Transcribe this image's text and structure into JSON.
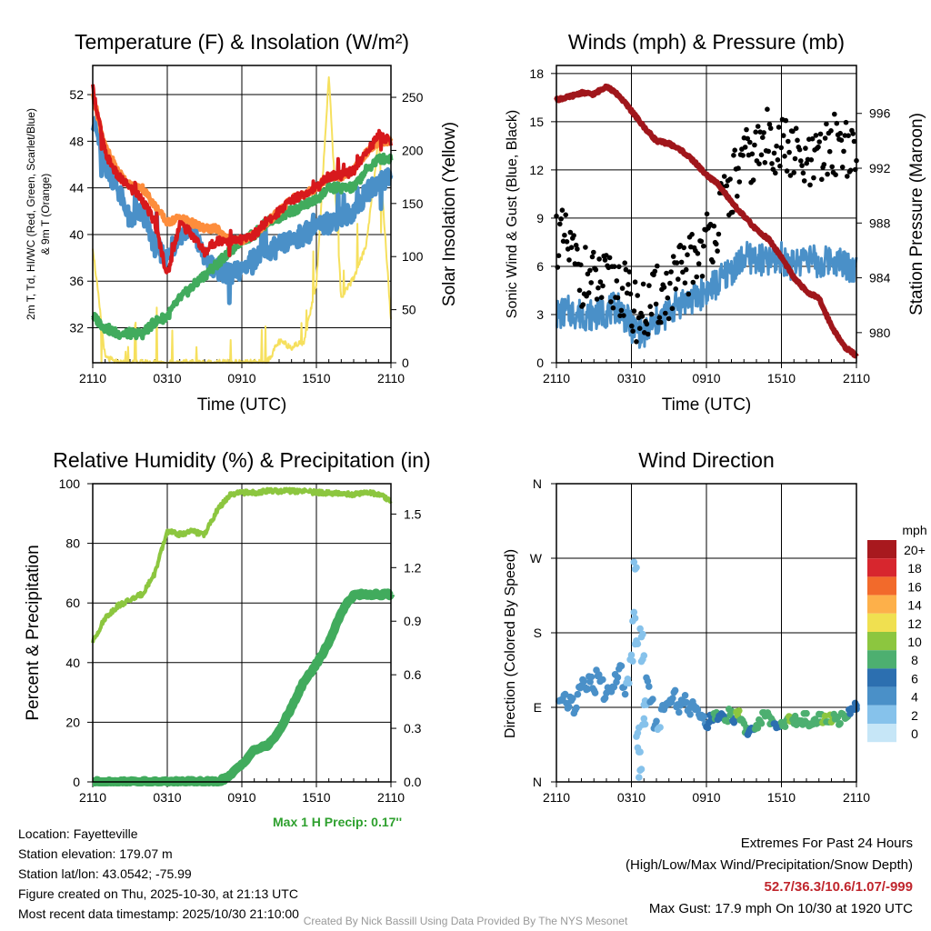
{
  "chart_data": [
    {
      "type": "line",
      "title": "Temperature (F) & Insolation (W/m²)",
      "xlabel": "Time (UTC)",
      "ylabel": "2m T, Td, HI/WC (Red, Green, Scarlet/Blue) & 9m T (Orange)",
      "y2label": "Solar Insolation (Yellow)",
      "x_ticks": [
        "2110",
        "0310",
        "0910",
        "1510",
        "2110"
      ],
      "y_ticks": [
        32,
        36,
        40,
        44,
        48,
        52
      ],
      "y2_ticks": [
        0,
        50,
        100,
        150,
        200,
        250
      ],
      "ylim": [
        29,
        54.5
      ],
      "y2lim": [
        0,
        280
      ],
      "hours": [
        0,
        1,
        2,
        3,
        4,
        5,
        6,
        7,
        8,
        9,
        10,
        11,
        12,
        13,
        14,
        15,
        16,
        17,
        18,
        19,
        20,
        21,
        22,
        23,
        24
      ],
      "series": [
        {
          "name": "2m T",
          "color": "#d7191c",
          "values": [
            52.5,
            47,
            45,
            44,
            43,
            41,
            36.5,
            41,
            40,
            38.5,
            39.5,
            39.5,
            39.5,
            40,
            41,
            42,
            43,
            43.5,
            44,
            45,
            45,
            45.5,
            47,
            48.5,
            48
          ]
        },
        {
          "name": "9m T",
          "color": "#fd8d3c",
          "values": [
            52,
            47.5,
            45.5,
            44.2,
            44,
            42.5,
            41,
            41.5,
            41,
            40.5,
            40.5,
            39.5,
            39.5,
            40,
            41,
            42,
            43,
            43.5,
            44,
            45,
            45,
            45.5,
            47,
            48,
            48
          ]
        },
        {
          "name": "Td",
          "color": "#41ab5d",
          "values": [
            33,
            32,
            31.5,
            31.5,
            31.5,
            32.5,
            33,
            34.5,
            35.5,
            36.5,
            37.5,
            38.5,
            39.5,
            40,
            41,
            41.5,
            42,
            42.5,
            43,
            44,
            44,
            44,
            45.5,
            46.5,
            46.5
          ]
        },
        {
          "name": "HI/WC",
          "color": "#4a90c8",
          "values": [
            50,
            46,
            44,
            41,
            42,
            39,
            38,
            40,
            40.5,
            38,
            37,
            36.5,
            37,
            38,
            38.5,
            39,
            39.5,
            40,
            40.5,
            41,
            41.5,
            42,
            43.5,
            44.5,
            45
          ]
        },
        {
          "name": "Solar Insolation",
          "color": "#f6e05e",
          "axis": "y2",
          "values": [
            110,
            5,
            0,
            0,
            0,
            0,
            0,
            0,
            0,
            0,
            0,
            0,
            0,
            0,
            0,
            20,
            15,
            20,
            75,
            270,
            60,
            80,
            110,
            210,
            40
          ]
        }
      ]
    },
    {
      "type": "line",
      "title": "Winds (mph) & Pressure (mb)",
      "xlabel": "Time (UTC)",
      "ylabel": "Sonic Wind & Gust (Blue, Black)",
      "y2label": "Station Pressure (Maroon)",
      "x_ticks": [
        "2110",
        "0310",
        "0910",
        "1510",
        "2110"
      ],
      "y_ticks": [
        0,
        3,
        6,
        9,
        12,
        15,
        18
      ],
      "y2_ticks": [
        980,
        984,
        988,
        992,
        996
      ],
      "ylim": [
        0,
        18.5
      ],
      "y2lim": [
        977.8,
        999.5
      ],
      "hours": [
        0,
        1,
        2,
        3,
        4,
        5,
        6,
        7,
        8,
        9,
        10,
        11,
        12,
        13,
        14,
        15,
        16,
        17,
        18,
        19,
        20,
        21,
        22,
        23,
        24
      ],
      "series": [
        {
          "name": "Sonic Wind",
          "color": "#4a90c8",
          "values": [
            3,
            3.2,
            3,
            3,
            3.2,
            3.5,
            2.2,
            1.8,
            2.5,
            3.2,
            3.8,
            4,
            4.5,
            5,
            5.8,
            6.5,
            6.5,
            6.2,
            6.5,
            6,
            6.8,
            6,
            6.5,
            6.2,
            5.8
          ]
        },
        {
          "name": "Gust",
          "color": "#000000",
          "values": [
            8,
            7,
            5.5,
            5,
            4.8,
            5,
            3.5,
            3,
            4,
            4.5,
            5.5,
            6.5,
            7.5,
            9,
            11,
            12.5,
            13,
            14,
            13.5,
            13,
            12,
            12.5,
            13.5,
            14,
            12
          ]
        },
        {
          "name": "Station Pressure",
          "color": "#a0161b",
          "axis": "y2",
          "values": [
            997,
            997.2,
            997.5,
            997.4,
            998,
            997.3,
            996.2,
            995,
            994,
            993.8,
            993.3,
            992.5,
            991.5,
            990.8,
            989.5,
            988.5,
            987.5,
            986.8,
            985.5,
            984,
            983,
            982.5,
            980.5,
            979,
            978.3
          ]
        }
      ]
    },
    {
      "type": "line",
      "title": "Relative Humidity (%) & Precipitation (in)",
      "xlabel": "",
      "ylabel": "Percent & Precipitation",
      "x_ticks": [
        "2110",
        "0310",
        "0910",
        "1510",
        "2110"
      ],
      "y_ticks": [
        0,
        20,
        40,
        60,
        80,
        100
      ],
      "y2_ticks": [
        0.0,
        0.3,
        0.6,
        0.9,
        1.2,
        1.5
      ],
      "ylim": [
        0,
        100
      ],
      "y2lim": [
        0,
        1.67
      ],
      "hours": [
        0,
        1,
        2,
        3,
        4,
        5,
        6,
        7,
        8,
        9,
        10,
        11,
        12,
        13,
        14,
        15,
        16,
        17,
        18,
        19,
        20,
        21,
        22,
        23,
        24
      ],
      "series": [
        {
          "name": "Relative Humidity",
          "color": "#8cc63f",
          "values": [
            47,
            55,
            59,
            61,
            63,
            70,
            84,
            83,
            84,
            83,
            91,
            96,
            97,
            97,
            97.5,
            97.5,
            97.5,
            97.5,
            97,
            97,
            96.5,
            96.5,
            97,
            96.5,
            94
          ]
        },
        {
          "name": "Precipitation",
          "color": "#41ab5d",
          "axis": "y2",
          "values": [
            0,
            0,
            0,
            0,
            0,
            0,
            0,
            0,
            0,
            0,
            0,
            0.03,
            0.1,
            0.18,
            0.2,
            0.28,
            0.42,
            0.56,
            0.66,
            0.78,
            0.95,
            1.05,
            1.05,
            1.05,
            1.05
          ]
        }
      ]
    },
    {
      "type": "scatter",
      "title": "Wind Direction",
      "ylabel": "Direction (Colored By Speed)",
      "x_ticks": [
        "2110",
        "0310",
        "0910",
        "1510",
        "2110"
      ],
      "y_ticks": [
        "N",
        "E",
        "S",
        "W",
        "N"
      ],
      "ylim": [
        0,
        360
      ],
      "legend_title": "mph",
      "legend_labels": [
        "0",
        "2",
        "4",
        "6",
        "8",
        "10",
        "12",
        "14",
        "16",
        "18",
        "20+"
      ],
      "legend_colors": [
        "#c6e6f7",
        "#86c2eb",
        "#4a90c8",
        "#2c6fb0",
        "#4daf70",
        "#8cc63f",
        "#f0e050",
        "#fdb04a",
        "#f26a2b",
        "#d7262e",
        "#a8191e"
      ],
      "points": [
        {
          "h": 0.2,
          "dir": 95,
          "spd": 4
        },
        {
          "h": 0.5,
          "dir": 105,
          "spd": 4
        },
        {
          "h": 0.8,
          "dir": 90,
          "spd": 3
        },
        {
          "h": 1.1,
          "dir": 100,
          "spd": 4
        },
        {
          "h": 1.4,
          "dir": 88,
          "spd": 3
        },
        {
          "h": 1.7,
          "dir": 110,
          "spd": 4
        },
        {
          "h": 2.0,
          "dir": 120,
          "spd": 4
        },
        {
          "h": 2.3,
          "dir": 115,
          "spd": 3
        },
        {
          "h": 2.6,
          "dir": 125,
          "spd": 3
        },
        {
          "h": 2.9,
          "dir": 110,
          "spd": 3
        },
        {
          "h": 3.2,
          "dir": 130,
          "spd": 4
        },
        {
          "h": 3.5,
          "dir": 120,
          "spd": 4
        },
        {
          "h": 3.8,
          "dir": 105,
          "spd": 3
        },
        {
          "h": 4.1,
          "dir": 115,
          "spd": 3
        },
        {
          "h": 4.4,
          "dir": 110,
          "spd": 3
        },
        {
          "h": 4.7,
          "dir": 125,
          "spd": 3
        },
        {
          "h": 5.0,
          "dir": 140,
          "spd": 3
        },
        {
          "h": 5.3,
          "dir": 110,
          "spd": 3
        },
        {
          "h": 5.6,
          "dir": 120,
          "spd": 2
        },
        {
          "h": 5.9,
          "dir": 150,
          "spd": 2
        },
        {
          "h": 6.1,
          "dir": 200,
          "spd": 1
        },
        {
          "h": 6.2,
          "dir": 260,
          "spd": 1
        },
        {
          "h": 6.3,
          "dir": 170,
          "spd": 1
        },
        {
          "h": 6.4,
          "dir": 60,
          "spd": 1
        },
        {
          "h": 6.5,
          "dir": 40,
          "spd": 1
        },
        {
          "h": 6.6,
          "dir": 10,
          "spd": 1
        },
        {
          "h": 6.7,
          "dir": 180,
          "spd": 1
        },
        {
          "h": 6.8,
          "dir": 150,
          "spd": 2
        },
        {
          "h": 6.9,
          "dir": 75,
          "spd": 1
        },
        {
          "h": 7.0,
          "dir": 95,
          "spd": 2
        },
        {
          "h": 7.2,
          "dir": 120,
          "spd": 3
        },
        {
          "h": 7.5,
          "dir": 100,
          "spd": 3
        },
        {
          "h": 7.8,
          "dir": 70,
          "spd": 3
        },
        {
          "h": 8.1,
          "dir": 60,
          "spd": 2
        },
        {
          "h": 8.4,
          "dir": 90,
          "spd": 3
        },
        {
          "h": 8.7,
          "dir": 95,
          "spd": 3
        },
        {
          "h": 9.0,
          "dir": 100,
          "spd": 4
        },
        {
          "h": 9.3,
          "dir": 105,
          "spd": 3
        },
        {
          "h": 9.6,
          "dir": 90,
          "spd": 4
        },
        {
          "h": 9.9,
          "dir": 95,
          "spd": 4
        },
        {
          "h": 10.2,
          "dir": 100,
          "spd": 3
        },
        {
          "h": 10.5,
          "dir": 85,
          "spd": 4
        },
        {
          "h": 10.8,
          "dir": 95,
          "spd": 4
        },
        {
          "h": 11.1,
          "dir": 90,
          "spd": 3
        },
        {
          "h": 11.4,
          "dir": 80,
          "spd": 4
        },
        {
          "h": 11.7,
          "dir": 75,
          "spd": 4
        },
        {
          "h": 12.0,
          "dir": 70,
          "spd": 5
        },
        {
          "h": 12.3,
          "dir": 78,
          "spd": 6
        },
        {
          "h": 12.6,
          "dir": 80,
          "spd": 7
        },
        {
          "h": 12.9,
          "dir": 75,
          "spd": 5
        },
        {
          "h": 13.2,
          "dir": 80,
          "spd": 6
        },
        {
          "h": 13.5,
          "dir": 78,
          "spd": 8
        },
        {
          "h": 13.8,
          "dir": 82,
          "spd": 7
        },
        {
          "h": 14.1,
          "dir": 75,
          "spd": 6
        },
        {
          "h": 14.4,
          "dir": 80,
          "spd": 10
        },
        {
          "h": 14.7,
          "dir": 75,
          "spd": 8
        },
        {
          "h": 15.0,
          "dir": 65,
          "spd": 7
        },
        {
          "h": 15.3,
          "dir": 60,
          "spd": 6
        },
        {
          "h": 15.6,
          "dir": 62,
          "spd": 6
        },
        {
          "h": 15.9,
          "dir": 68,
          "spd": 7
        },
        {
          "h": 16.2,
          "dir": 72,
          "spd": 8
        },
        {
          "h": 16.5,
          "dir": 78,
          "spd": 7
        },
        {
          "h": 16.8,
          "dir": 80,
          "spd": 8
        },
        {
          "h": 17.1,
          "dir": 75,
          "spd": 7
        },
        {
          "h": 17.4,
          "dir": 70,
          "spd": 6
        },
        {
          "h": 17.7,
          "dir": 65,
          "spd": 6
        },
        {
          "h": 18.0,
          "dir": 68,
          "spd": 7
        },
        {
          "h": 18.3,
          "dir": 72,
          "spd": 8
        },
        {
          "h": 18.6,
          "dir": 78,
          "spd": 9
        },
        {
          "h": 18.9,
          "dir": 74,
          "spd": 8
        },
        {
          "h": 19.2,
          "dir": 70,
          "spd": 7
        },
        {
          "h": 19.5,
          "dir": 75,
          "spd": 8
        },
        {
          "h": 19.8,
          "dir": 78,
          "spd": 8
        },
        {
          "h": 20.1,
          "dir": 72,
          "spd": 7
        },
        {
          "h": 20.4,
          "dir": 70,
          "spd": 7
        },
        {
          "h": 20.7,
          "dir": 75,
          "spd": 8
        },
        {
          "h": 21.0,
          "dir": 78,
          "spd": 8
        },
        {
          "h": 21.3,
          "dir": 74,
          "spd": 9
        },
        {
          "h": 21.6,
          "dir": 72,
          "spd": 8
        },
        {
          "h": 21.9,
          "dir": 76,
          "spd": 10
        },
        {
          "h": 22.2,
          "dir": 80,
          "spd": 8
        },
        {
          "h": 22.5,
          "dir": 75,
          "spd": 7
        },
        {
          "h": 22.8,
          "dir": 80,
          "spd": 7
        },
        {
          "h": 23.1,
          "dir": 82,
          "spd": 7
        },
        {
          "h": 23.4,
          "dir": 85,
          "spd": 6
        },
        {
          "h": 23.7,
          "dir": 90,
          "spd": 6
        },
        {
          "h": 24.0,
          "dir": 92,
          "spd": 6
        }
      ]
    }
  ],
  "info": {
    "location": "Location: Fayetteville",
    "elevation": "Station elevation: 179.07 m",
    "latlon": "Station lat/lon: 43.0542; -75.99",
    "created": "Figure created on Thu, 2025-10-30, at 21:13 UTC",
    "recent": "Most recent data timestamp: 2025/10/30 21:10:00"
  },
  "max_precip": "Max 1 H Precip: 0.17''",
  "extremes": {
    "title": "Extremes For Past 24 Hours",
    "subtitle": "(High/Low/Max Wind/Precipitation/Snow Depth)",
    "values": "52.7/36.3/10.6/1.07/-999",
    "gust": "Max Gust: 17.9 mph On 10/30 at 1920 UTC"
  },
  "credit": "Created By Nick Bassill Using Data Provided By The NYS Mesonet"
}
